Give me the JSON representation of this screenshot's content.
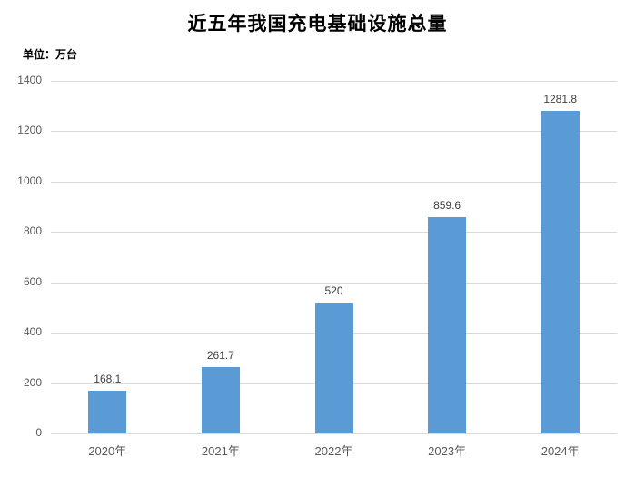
{
  "chart_data": {
    "type": "bar",
    "title": "近五年我国充电基础设施总量",
    "unit_label": "单位：万台",
    "categories": [
      "2020年",
      "2021年",
      "2022年",
      "2023年",
      "2024年"
    ],
    "values": [
      168.1,
      261.7,
      520,
      859.6,
      1281.8
    ],
    "value_labels": [
      "168.1",
      "261.7",
      "520",
      "859.6",
      "1281.8"
    ],
    "xlabel": "",
    "ylabel": "",
    "ylim": [
      0,
      1400
    ],
    "ytick_step": 200,
    "ytick_labels": [
      "0",
      "200",
      "400",
      "600",
      "800",
      "1000",
      "1200",
      "1400"
    ],
    "grid": true,
    "legend": "none",
    "colors": {
      "bar": "#5b9bd5",
      "gridline": "#d9d9d9",
      "axis_line": "#d9d9d9",
      "tick_text": "#595959",
      "value_text": "#404040",
      "title_text": "#000000",
      "background": "#ffffff"
    }
  }
}
